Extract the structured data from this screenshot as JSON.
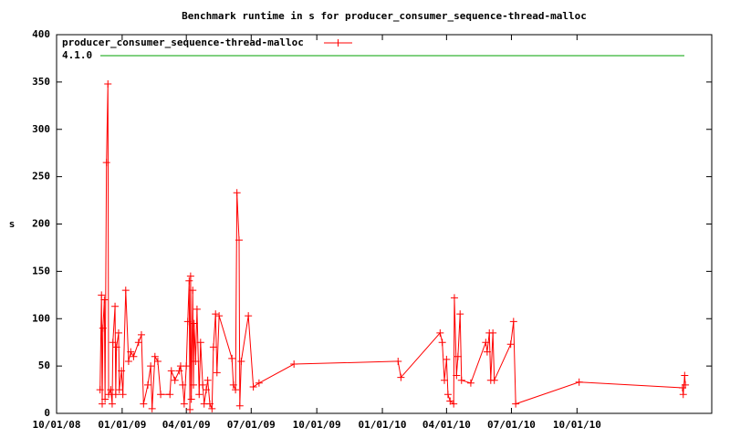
{
  "chart_data": {
    "type": "line",
    "title": "Benchmark runtime in s for producer_consumer_sequence-thread-malloc",
    "y_label": "s",
    "legend": "top-left",
    "xlim": [
      "10/01/08",
      "04/08/11"
    ],
    "xticks": [
      "10/01/08",
      "01/01/09",
      "04/01/09",
      "07/01/09",
      "10/01/09",
      "01/01/10",
      "04/01/10",
      "07/01/10",
      "10/01/10"
    ],
    "ylim": [
      0,
      400
    ],
    "yticks": [
      0,
      50,
      100,
      150,
      200,
      250,
      300,
      350,
      400
    ],
    "series": [
      {
        "name": "producer_consumer_sequence-thread-malloc",
        "color": "#ff0000",
        "x": [
          "12/01/08",
          "12/03/08",
          "12/04/08",
          "12/05/08",
          "12/07/08",
          "12/08/08",
          "12/10/08",
          "12/12/08",
          "12/13/08",
          "12/16/08",
          "12/18/08",
          "12/19/08",
          "12/22/08",
          "12/23/08",
          "12/24/08",
          "12/27/08",
          "12/28/08",
          "12/31/08",
          "01/02/09",
          "01/06/09",
          "01/10/09",
          "01/13/09",
          "01/17/09",
          "01/24/09",
          "01/28/09",
          "01/31/09",
          "02/06/09",
          "02/10/09",
          "02/12/09",
          "02/16/09",
          "02/20/09",
          "02/24/09",
          "03/09/09",
          "03/11/09",
          "03/16/09",
          "03/22/09",
          "03/24/09",
          "03/27/09",
          "03/29/09",
          "04/01/09",
          "04/03/09",
          "04/05/09",
          "04/06/09",
          "04/07/09",
          "04/08/09",
          "04/10/09",
          "04/11/09",
          "04/12/09",
          "04/14/09",
          "04/16/09",
          "04/19/09",
          "04/21/09",
          "04/24/09",
          "04/26/09",
          "04/29/09",
          "05/01/09",
          "05/04/09",
          "05/07/09",
          "05/09/09",
          "05/12/09",
          "05/14/09",
          "05/17/09",
          "06/04/09",
          "06/06/09",
          "06/09/09",
          "06/11/09",
          "06/14/09",
          "06/15/09",
          "06/17/09",
          "06/27/09",
          "07/04/09",
          "07/12/09",
          "08/30/09",
          "01/23/10",
          "01/27/10",
          "03/23/10",
          "03/26/10",
          "03/29/10",
          "04/01/10",
          "04/03/10",
          "04/06/10",
          "04/11/10",
          "04/12/10",
          "04/15/10",
          "04/17/10",
          "04/20/10",
          "04/22/10",
          "05/05/10",
          "05/26/10",
          "05/28/10",
          "05/31/10",
          "06/02/10",
          "06/05/10",
          "06/07/10",
          "06/30/10",
          "07/04/10",
          "07/07/10",
          "10/04/10",
          "02/26/11",
          "02/27/11",
          "03/01/11",
          "03/02/11"
        ],
        "values": [
          25,
          125,
          10,
          90,
          120,
          15,
          265,
          348,
          20,
          25,
          10,
          75,
          113,
          20,
          70,
          85,
          25,
          45,
          20,
          130,
          55,
          65,
          60,
          75,
          83,
          10,
          30,
          50,
          5,
          60,
          55,
          20,
          20,
          45,
          35,
          45,
          50,
          30,
          10,
          50,
          97,
          140,
          4,
          145,
          15,
          130,
          30,
          95,
          55,
          110,
          20,
          75,
          30,
          10,
          25,
          35,
          10,
          5,
          70,
          105,
          43,
          103,
          58,
          30,
          25,
          233,
          183,
          8,
          55,
          103,
          28,
          32,
          52,
          55,
          38,
          85,
          75,
          35,
          57,
          20,
          13,
          10,
          122,
          40,
          60,
          105,
          35,
          32,
          75,
          65,
          85,
          35,
          85,
          35,
          73,
          97,
          10,
          33,
          27,
          20,
          40,
          30
        ]
      },
      {
        "name": "4.1.0",
        "color": "#00a000",
        "x": [],
        "values": []
      }
    ]
  }
}
